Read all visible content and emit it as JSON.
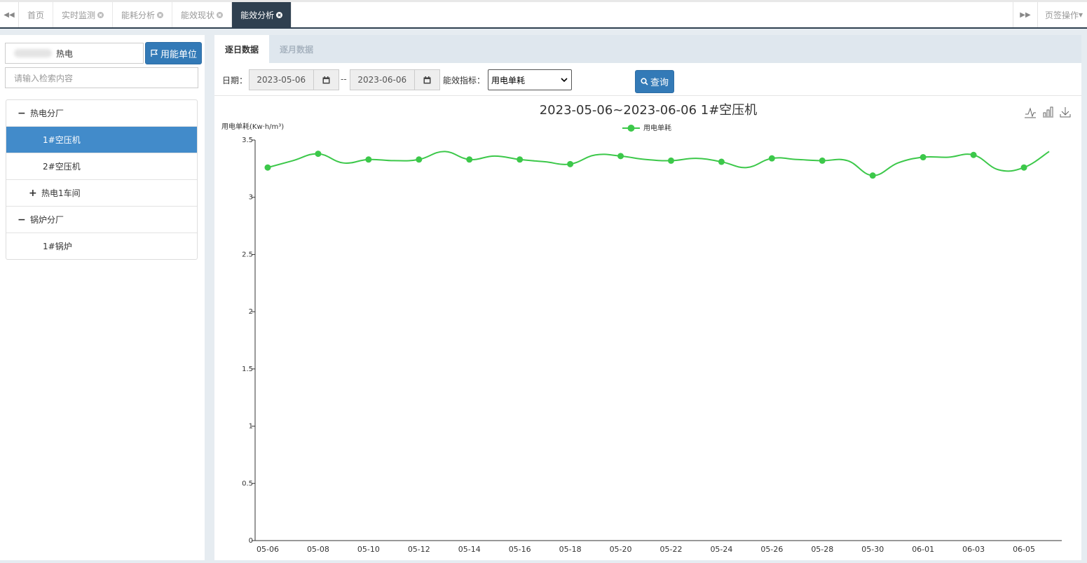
{
  "tabs": {
    "items": [
      "首页",
      "实时监测",
      "能耗分析",
      "能效现状",
      "能效分析"
    ],
    "active": 4,
    "operations": "页签操作"
  },
  "sidebar": {
    "unit_input": "热电",
    "unit_button": "用能单位",
    "search_placeholder": "请输入检索内容",
    "tree": [
      "热电分厂",
      "1#空压机",
      "2#空压机",
      "热电1车间",
      "锅炉分厂",
      "1#锅炉"
    ]
  },
  "panel": {
    "tabs": [
      "逐日数据",
      "逐月数据"
    ],
    "date_label": "日期：",
    "start_date": "2023-05-06",
    "separator": "--",
    "end_date": "2023-06-06",
    "metric_label": "能效指标：",
    "metric": "用电单耗",
    "query_button": "查询"
  },
  "chart_data": {
    "type": "line",
    "title": "2023-05-06~2023-06-06  1#空压机",
    "y_label": "用电单耗(Kw·h/m³)",
    "smooth": true,
    "categories": [
      "05-06",
      null,
      "05-08",
      null,
      "05-10",
      null,
      "05-12",
      null,
      "05-14",
      null,
      "05-16",
      null,
      "05-18",
      null,
      "05-20",
      null,
      "05-22",
      null,
      "05-24",
      null,
      "05-26",
      null,
      "05-28",
      null,
      "05-30",
      null,
      "06-01",
      null,
      "06-03",
      null,
      "06-05",
      null
    ],
    "series": [
      {
        "name": "用电单耗",
        "color": "#3cc84a",
        "values": [
          3.26,
          3.32,
          3.38,
          3.3,
          3.33,
          3.32,
          3.33,
          3.4,
          3.33,
          3.36,
          3.33,
          3.31,
          3.29,
          3.37,
          3.36,
          3.33,
          3.32,
          3.34,
          3.31,
          3.26,
          3.34,
          3.33,
          3.32,
          3.32,
          3.19,
          3.3,
          3.35,
          3.35,
          3.37,
          3.24,
          3.26,
          3.4
        ]
      }
    ],
    "ylim": [
      0,
      3.5
    ],
    "yticks": [
      0,
      0.5,
      1,
      1.5,
      2,
      2.5,
      3,
      3.5
    ]
  }
}
